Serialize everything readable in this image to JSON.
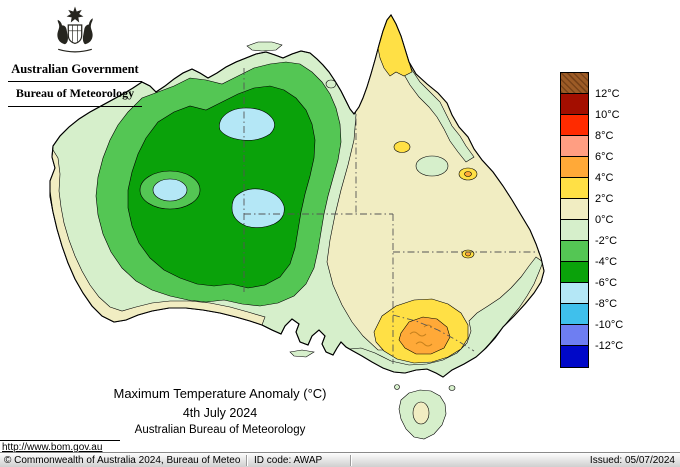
{
  "header": {
    "government": "Australian Government",
    "agency": "Bureau of Meteorology"
  },
  "titles": {
    "title": "Maximum Temperature Anomaly (°C)",
    "date": "4th July 2024",
    "source": "Australian Bureau of Meteorology"
  },
  "link": {
    "url": "http://www.bom.gov.au"
  },
  "legend": {
    "labels": [
      "12°C",
      "10°C",
      "8°C",
      "6°C",
      "4°C",
      "2°C",
      "0°C",
      "-2°C",
      "-4°C",
      "-6°C",
      "-8°C",
      "-10°C",
      "-12°C"
    ],
    "entries": [
      {
        "key": "gt12",
        "hatched": true
      },
      {
        "key": "p10_12"
      },
      {
        "key": "p8_10"
      },
      {
        "key": "p6_8"
      },
      {
        "key": "p4_6"
      },
      {
        "key": "p2_4"
      },
      {
        "key": "p0_2"
      },
      {
        "key": "m2_0"
      },
      {
        "key": "m4_m2"
      },
      {
        "key": "m6_m4"
      },
      {
        "key": "m8_m6"
      },
      {
        "key": "m10_m8"
      },
      {
        "key": "m12_m10"
      },
      {
        "key": "ltm12"
      }
    ]
  },
  "palette": {
    "gt12": "#9C5B26",
    "p10_12": "#A30E00",
    "p8_10": "#FF2B00",
    "p6_8": "#FF9E82",
    "p4_6": "#FFA938",
    "p2_4": "#FFE045",
    "p0_2": "#F1EDC2",
    "m2_0": "#D6EFCB",
    "m4_m2": "#54C654",
    "m6_m4": "#0AA20A",
    "m8_m6": "#B4E7F6",
    "m10_m8": "#3FC0EC",
    "m12_m10": "#6E7EF2",
    "ltm12": "#0008C8",
    "state_border": "#555555",
    "coast": "#000000"
  },
  "footer": {
    "copyright": "© Commonwealth of Australia 2024, Bureau of Meteorology",
    "id_code": "ID code: AWAP",
    "issued": "Issued: 05/07/2024"
  }
}
